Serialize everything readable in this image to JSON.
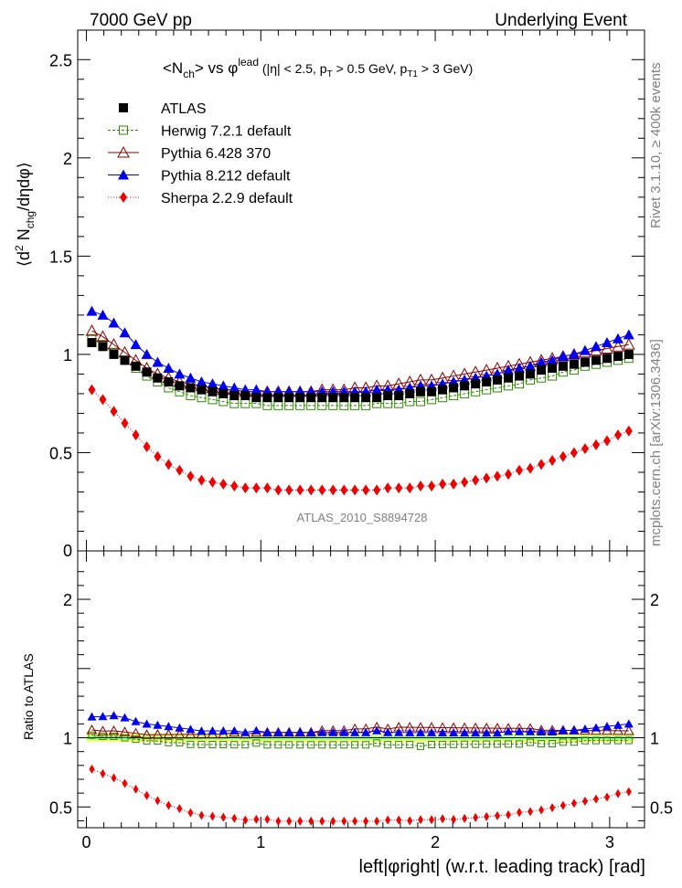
{
  "header": {
    "left": "7000 GeV pp",
    "right": "Underlying Event"
  },
  "side_labels": {
    "rivet": "Rivet 3.1.10, ≥ 400k events",
    "mcplots": "mcplots.cern.ch [arXiv:1306.3436]"
  },
  "plot_title": {
    "main": "<N",
    "sub_ch": "ch",
    "vs": "> vs φ",
    "sup_lead": "lead",
    "cuts_a": " (|η| < 2.5, p",
    "sub_T": "T",
    "cuts_b": " > 0.5 GeV, p",
    "sub_T1": "T1",
    "cuts_c": " > 3 GeV)"
  },
  "y_label_main": {
    "a": "⟨d",
    "sup2": "2",
    "b": " N",
    "sub_chg": "chg",
    "c": "/dηdφ⟩"
  },
  "watermark": "ATLAS_2010_S8894728",
  "ratio_ylabel": "Ratio to ATLAS",
  "xlabel": "left|φright| (w.r.t. leading track) [rad]",
  "colors": {
    "atlas": "#000000",
    "herwig": "#2e8b00",
    "pythia6": "#8b0000",
    "pythia8": "#0000ee",
    "sherpa": "#ee0000",
    "band_outer": "#ffff66",
    "band_inner": "#99ff99"
  },
  "chart_data": {
    "type": "scatter",
    "title": "<Nch> vs φlead (|η| < 2.5, pT > 0.5 GeV, pT1 > 3 GeV)",
    "xlabel": "left|φright| (w.r.t. leading track) [rad]",
    "ylabel": "⟨d2 Nchg/dηdφ⟩",
    "xlim": [
      -0.05,
      3.2
    ],
    "ylim_main": [
      0,
      2.65
    ],
    "ylim_ratio": [
      0.35,
      2.35
    ],
    "x_ticks": [
      0,
      1,
      2,
      3
    ],
    "y_ticks_main": [
      0.5,
      1,
      1.5,
      2,
      2.5
    ],
    "y_ticks_ratio": [
      0.5,
      1,
      2
    ],
    "legend": [
      "ATLAS",
      "Herwig 7.2.1 default",
      "Pythia 6.428 370",
      "Pythia 8.212 default",
      "Sherpa 2.2.9 default"
    ],
    "x": [
      0.031,
      0.094,
      0.157,
      0.22,
      0.283,
      0.346,
      0.408,
      0.471,
      0.534,
      0.597,
      0.66,
      0.723,
      0.785,
      0.848,
      0.911,
      0.974,
      1.037,
      1.1,
      1.162,
      1.225,
      1.288,
      1.351,
      1.414,
      1.477,
      1.539,
      1.602,
      1.665,
      1.728,
      1.791,
      1.854,
      1.916,
      1.979,
      2.042,
      2.105,
      2.168,
      2.231,
      2.294,
      2.356,
      2.419,
      2.482,
      2.545,
      2.608,
      2.671,
      2.733,
      2.796,
      2.859,
      2.922,
      2.985,
      3.048,
      3.11
    ],
    "series": [
      {
        "name": "ATLAS",
        "values": [
          1.06,
          1.04,
          1.0,
          0.97,
          0.94,
          0.91,
          0.88,
          0.86,
          0.84,
          0.83,
          0.82,
          0.81,
          0.8,
          0.79,
          0.79,
          0.78,
          0.78,
          0.78,
          0.78,
          0.78,
          0.78,
          0.78,
          0.78,
          0.78,
          0.78,
          0.78,
          0.78,
          0.79,
          0.79,
          0.8,
          0.81,
          0.81,
          0.82,
          0.83,
          0.84,
          0.85,
          0.86,
          0.87,
          0.88,
          0.89,
          0.9,
          0.92,
          0.93,
          0.94,
          0.95,
          0.96,
          0.97,
          0.98,
          0.99,
          1.0
        ]
      },
      {
        "name": "Herwig 7.2.1 default",
        "values": [
          1.08,
          1.05,
          1.01,
          0.97,
          0.93,
          0.89,
          0.86,
          0.83,
          0.81,
          0.79,
          0.78,
          0.77,
          0.76,
          0.75,
          0.75,
          0.75,
          0.74,
          0.74,
          0.74,
          0.74,
          0.74,
          0.74,
          0.74,
          0.74,
          0.74,
          0.74,
          0.75,
          0.75,
          0.75,
          0.76,
          0.76,
          0.77,
          0.78,
          0.79,
          0.8,
          0.81,
          0.82,
          0.83,
          0.84,
          0.85,
          0.87,
          0.88,
          0.89,
          0.91,
          0.92,
          0.94,
          0.95,
          0.96,
          0.97,
          0.98
        ]
      },
      {
        "name": "Pythia 6.428 370",
        "values": [
          1.12,
          1.09,
          1.05,
          1.01,
          0.97,
          0.93,
          0.9,
          0.88,
          0.86,
          0.85,
          0.84,
          0.83,
          0.82,
          0.82,
          0.81,
          0.81,
          0.81,
          0.81,
          0.81,
          0.81,
          0.81,
          0.82,
          0.82,
          0.82,
          0.83,
          0.83,
          0.84,
          0.84,
          0.85,
          0.86,
          0.87,
          0.87,
          0.88,
          0.89,
          0.9,
          0.91,
          0.92,
          0.93,
          0.94,
          0.95,
          0.96,
          0.97,
          0.98,
          0.99,
          1.0,
          1.01,
          1.02,
          1.03,
          1.04,
          1.05
        ]
      },
      {
        "name": "Pythia 8.212 default",
        "values": [
          1.22,
          1.2,
          1.16,
          1.11,
          1.05,
          1.0,
          0.96,
          0.93,
          0.9,
          0.88,
          0.86,
          0.85,
          0.84,
          0.83,
          0.82,
          0.82,
          0.81,
          0.81,
          0.81,
          0.81,
          0.81,
          0.81,
          0.81,
          0.81,
          0.81,
          0.81,
          0.82,
          0.82,
          0.82,
          0.83,
          0.84,
          0.84,
          0.85,
          0.86,
          0.87,
          0.88,
          0.89,
          0.9,
          0.92,
          0.93,
          0.94,
          0.96,
          0.97,
          0.99,
          1.0,
          1.02,
          1.04,
          1.06,
          1.08,
          1.1
        ]
      },
      {
        "name": "Sherpa 2.2.9 default",
        "values": [
          0.82,
          0.77,
          0.71,
          0.65,
          0.59,
          0.53,
          0.48,
          0.44,
          0.41,
          0.38,
          0.36,
          0.35,
          0.34,
          0.33,
          0.32,
          0.32,
          0.32,
          0.31,
          0.31,
          0.31,
          0.31,
          0.31,
          0.31,
          0.31,
          0.31,
          0.31,
          0.31,
          0.32,
          0.32,
          0.32,
          0.33,
          0.33,
          0.34,
          0.34,
          0.35,
          0.36,
          0.37,
          0.38,
          0.39,
          0.41,
          0.42,
          0.44,
          0.46,
          0.48,
          0.5,
          0.52,
          0.54,
          0.56,
          0.59,
          0.61
        ]
      }
    ]
  }
}
